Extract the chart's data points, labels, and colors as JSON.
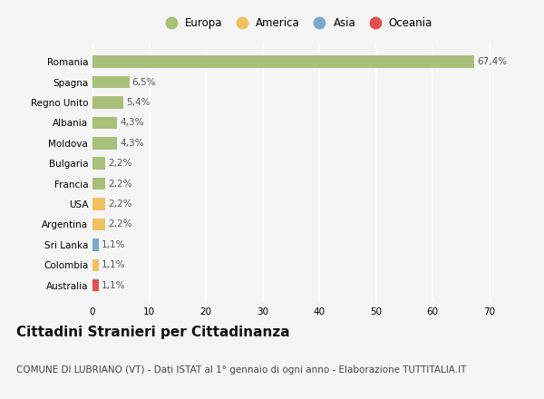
{
  "countries": [
    "Romania",
    "Spagna",
    "Regno Unito",
    "Albania",
    "Moldova",
    "Bulgaria",
    "Francia",
    "USA",
    "Argentina",
    "Sri Lanka",
    "Colombia",
    "Australia"
  ],
  "values": [
    67.4,
    6.5,
    5.4,
    4.3,
    4.3,
    2.2,
    2.2,
    2.2,
    2.2,
    1.1,
    1.1,
    1.1
  ],
  "labels": [
    "67,4%",
    "6,5%",
    "5,4%",
    "4,3%",
    "4,3%",
    "2,2%",
    "2,2%",
    "2,2%",
    "2,2%",
    "1,1%",
    "1,1%",
    "1,1%"
  ],
  "bar_colors": [
    "#a8c07a",
    "#a8c07a",
    "#a8c07a",
    "#a8c07a",
    "#a8c07a",
    "#a8c07a",
    "#a8c07a",
    "#f0c060",
    "#f0c060",
    "#7ba7d0",
    "#f0c060",
    "#e05050"
  ],
  "legend_labels": [
    "Europa",
    "America",
    "Asia",
    "Oceania"
  ],
  "legend_colors": [
    "#a8c07a",
    "#f0c060",
    "#7ba7d0",
    "#e05050"
  ],
  "title": "Cittadini Stranieri per Cittadinanza",
  "subtitle": "COMUNE DI LUBRIANO (VT) - Dati ISTAT al 1° gennaio di ogni anno - Elaborazione TUTTITALIA.IT",
  "xlim": [
    0,
    72
  ],
  "xticks": [
    0,
    10,
    20,
    30,
    40,
    50,
    60,
    70
  ],
  "bg_color": "#f5f5f5",
  "grid_color": "#ffffff",
  "title_fontsize": 11,
  "subtitle_fontsize": 7.5,
  "label_fontsize": 7.5,
  "tick_fontsize": 7.5,
  "legend_fontsize": 8.5
}
